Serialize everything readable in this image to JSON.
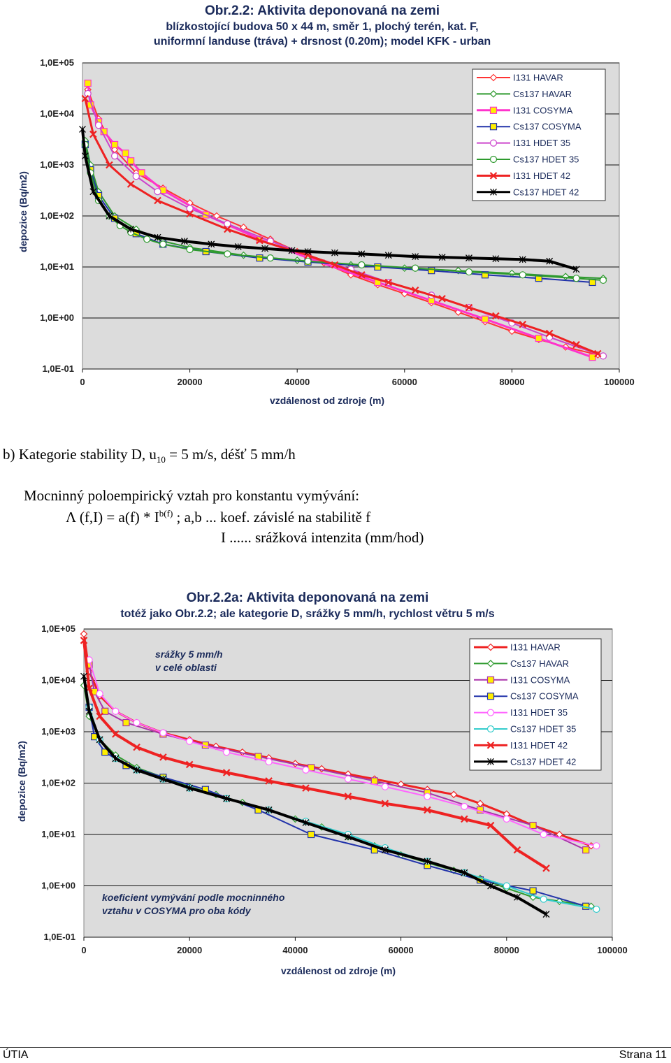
{
  "chart_data": [
    {
      "type": "line",
      "title_lines": [
        "Obr.2.2:  Aktivita deponovaná na zemi",
        "blízkostojící budova 50 x 44 m, směr 1, plochý terén, kat. F,",
        "uniformní landuse (tráva) + drsnost (0.20m); model KFK - urban"
      ],
      "xlabel": "vzdálenost od zdroje (m)",
      "ylabel": "depozice (Bq/m2)",
      "xlim": [
        0,
        100000
      ],
      "ylim": [
        0.1,
        100000
      ],
      "yscale": "log",
      "x_ticks": [
        "0",
        "20000",
        "40000",
        "60000",
        "80000",
        "100000"
      ],
      "y_ticks": [
        "1,0E-01",
        "1,0E+00",
        "1,0E+01",
        "1,0E+02",
        "1,0E+03",
        "1,0E+04",
        "1,0E+05"
      ],
      "grid": "horizontal",
      "legend_position": "top-right",
      "annotations": [],
      "series": [
        {
          "name": "I131 HAVAR",
          "color": "#ff3333",
          "marker": "diamond-open",
          "lw": 2,
          "x": [
            1000,
            3000,
            6000,
            10000,
            15000,
            20000,
            25000,
            30000,
            35000,
            40000,
            45000,
            50000,
            55000,
            60000,
            65000,
            70000,
            75000,
            80000,
            85000,
            90000,
            96000
          ],
          "y": [
            30000,
            8000,
            2000,
            700,
            350,
            180,
            100,
            60,
            35,
            20,
            12,
            7,
            4.5,
            3,
            2,
            1.3,
            0.85,
            0.55,
            0.38,
            0.27,
            0.19
          ]
        },
        {
          "name": "Cs137 HAVAR",
          "color": "#2e9a2e",
          "marker": "diamond-open",
          "lw": 2,
          "x": [
            500,
            1500,
            3000,
            6000,
            10000,
            15000,
            20000,
            30000,
            40000,
            50000,
            60000,
            70000,
            80000,
            90000,
            97000
          ],
          "y": [
            3000,
            1000,
            300,
            100,
            55,
            32,
            24,
            17,
            13.5,
            11,
            9.5,
            8.5,
            7.5,
            6.5,
            6
          ]
        },
        {
          "name": "I131 COSYMA",
          "color": "#ff33cc",
          "marker": "square-yellow",
          "lw": 3,
          "x": [
            1000,
            1500,
            3000,
            4000,
            6000,
            8000,
            9000,
            11000,
            15000,
            23000,
            33000,
            42000,
            55000,
            65000,
            75000,
            85000,
            95000
          ],
          "y": [
            40000,
            15000,
            7000,
            4500,
            2500,
            1700,
            1200,
            700,
            320,
            105,
            35,
            15,
            5,
            2.2,
            0.95,
            0.4,
            0.17
          ]
        },
        {
          "name": "Cs137 COSYMA",
          "color": "#2233aa",
          "marker": "square-yellow",
          "lw": 2,
          "x": [
            500,
            1500,
            3000,
            6000,
            10000,
            15000,
            23000,
            33000,
            42000,
            55000,
            65000,
            75000,
            85000,
            95000
          ],
          "y": [
            2500,
            800,
            250,
            90,
            45,
            28,
            20,
            15,
            12.5,
            10,
            8.5,
            7,
            6,
            5
          ]
        },
        {
          "name": "I131 HDET 35",
          "color": "#cc44cc",
          "marker": "circle-open",
          "lw": 2,
          "x": [
            1000,
            3000,
            6000,
            10000,
            14000,
            20000,
            27000,
            35000,
            42000,
            50000,
            57000,
            65000,
            72000,
            80000,
            87000,
            97000
          ],
          "y": [
            25000,
            6000,
            1500,
            600,
            300,
            140,
            70,
            32,
            17,
            9,
            5,
            2.8,
            1.6,
            0.8,
            0.42,
            0.18
          ]
        },
        {
          "name": "Cs137 HDET 35",
          "color": "#2e9a2e",
          "marker": "circle-open",
          "lw": 2,
          "x": [
            500,
            1500,
            3000,
            5000,
            7000,
            9000,
            12000,
            15000,
            20000,
            27000,
            35000,
            42000,
            52000,
            62000,
            72000,
            82000,
            92000,
            97000
          ],
          "y": [
            2500,
            700,
            200,
            100,
            65,
            48,
            35,
            28,
            22,
            18,
            15,
            13,
            11,
            9.5,
            8,
            7,
            6,
            5.5
          ]
        },
        {
          "name": "I131 HDET 42",
          "color": "#ee2222",
          "marker": "x",
          "lw": 3,
          "x": [
            500,
            2000,
            5000,
            9000,
            14000,
            20000,
            27000,
            33000,
            42000,
            47000,
            52000,
            57000,
            62000,
            67000,
            72000,
            77000,
            82000,
            87000,
            92000,
            96000
          ],
          "y": [
            20000,
            4000,
            1000,
            420,
            200,
            110,
            55,
            33,
            17,
            11,
            7,
            5,
            3.5,
            2.4,
            1.6,
            1.1,
            0.75,
            0.5,
            0.3,
            0.2
          ]
        },
        {
          "name": "Cs137 HDET 42",
          "color": "#000000",
          "marker": "asterisk",
          "lw": 4,
          "x": [
            0,
            500,
            2000,
            5000,
            9000,
            14000,
            19000,
            24000,
            29000,
            34000,
            39000,
            42000,
            47000,
            52000,
            57000,
            62000,
            67000,
            72000,
            77000,
            82000,
            87000,
            92000
          ],
          "y": [
            5000,
            1500,
            300,
            100,
            55,
            38,
            32,
            28,
            25,
            23,
            21,
            20,
            19,
            18,
            17,
            16,
            15.5,
            15,
            14.5,
            14,
            13,
            9
          ]
        }
      ]
    },
    {
      "type": "line",
      "title_lines": [
        "Obr.2.2a: Aktivita  deponovaná na zemi",
        "totéž jako Obr.2.2; ale kategorie D, srážky 5 mm/h, rychlost větru 5 m/s"
      ],
      "xlabel": "vzdálenost od zdroje (m)",
      "ylabel": "depozice (Bq/m2)",
      "xlim": [
        0,
        100000
      ],
      "ylim": [
        0.1,
        100000
      ],
      "yscale": "log",
      "x_ticks": [
        "0",
        "20000",
        "40000",
        "60000",
        "80000",
        "100000"
      ],
      "y_ticks": [
        "1,0E-01",
        "1,0E+00",
        "1,0E+01",
        "1,0E+02",
        "1,0E+03",
        "1,0E+04",
        "1,0E+05"
      ],
      "grid": "horizontal",
      "legend_position": "top-right",
      "annotations": [
        {
          "text_lines": [
            "srážky 5 mm/h",
            "v celé oblasti"
          ],
          "position": "upper-left"
        },
        {
          "text_lines": [
            "koeficient vymývání podle mocninného",
            "vztahu v COSYMA pro oba kódy"
          ],
          "position": "lower-left"
        }
      ],
      "series": [
        {
          "name": "I131 HAVAR",
          "color": "#ee2222",
          "marker": "diamond-open",
          "lw": 3,
          "x": [
            0,
            1000,
            3000,
            6000,
            10000,
            15000,
            20000,
            25000,
            30000,
            35000,
            40000,
            45000,
            50000,
            55000,
            60000,
            65000,
            70000,
            75000,
            80000,
            85000,
            90000,
            96000
          ],
          "y": [
            80000,
            15000,
            5000,
            2500,
            1500,
            950,
            700,
            520,
            400,
            310,
            240,
            190,
            150,
            120,
            95,
            75,
            60,
            40,
            25,
            15,
            10,
            6
          ]
        },
        {
          "name": "Cs137 HAVAR",
          "color": "#2e9a2e",
          "marker": "diamond-open",
          "lw": 2,
          "x": [
            0,
            1000,
            3000,
            6000,
            10000,
            15000,
            20000,
            25000,
            30000,
            35000,
            40000,
            45000,
            50000,
            55000,
            60000,
            65000,
            70000,
            75000,
            80000,
            85000,
            90000,
            96000
          ],
          "y": [
            8000,
            2000,
            700,
            350,
            200,
            130,
            85,
            60,
            42,
            30,
            20,
            14,
            9,
            6,
            4,
            2.8,
            2,
            1.4,
            0.9,
            0.6,
            0.5,
            0.4
          ]
        },
        {
          "name": "I131 COSYMA",
          "color": "#aa33aa",
          "marker": "square-yellow",
          "lw": 2,
          "x": [
            1000,
            2000,
            4000,
            8000,
            15000,
            23000,
            33000,
            43000,
            55000,
            65000,
            75000,
            85000,
            95000
          ],
          "y": [
            20000,
            6000,
            2500,
            1500,
            900,
            550,
            330,
            200,
            110,
            65,
            30,
            15,
            5
          ]
        },
        {
          "name": "Cs137 COSYMA",
          "color": "#2233aa",
          "marker": "square-yellow",
          "lw": 2,
          "x": [
            1000,
            2000,
            4000,
            8000,
            15000,
            23000,
            33000,
            43000,
            55000,
            65000,
            75000,
            85000,
            95000
          ],
          "y": [
            3000,
            800,
            400,
            220,
            130,
            75,
            30,
            10,
            5,
            2.5,
            1.3,
            0.8,
            0.4
          ]
        },
        {
          "name": "I131 HDET 35",
          "color": "#ff66ff",
          "marker": "circle-open",
          "lw": 2,
          "x": [
            1000,
            3000,
            6000,
            10000,
            15000,
            20000,
            27000,
            35000,
            42000,
            50000,
            57000,
            65000,
            72000,
            80000,
            87000,
            97000
          ],
          "y": [
            25000,
            5500,
            2500,
            1500,
            950,
            650,
            400,
            260,
            180,
            120,
            85,
            55,
            35,
            20,
            10,
            6
          ]
        },
        {
          "name": "Cs137 HDET 35",
          "color": "#33cccc",
          "marker": "circle-open",
          "lw": 2,
          "x": [
            1000,
            3000,
            6000,
            10000,
            15000,
            20000,
            27000,
            35000,
            42000,
            50000,
            57000,
            65000,
            72000,
            80000,
            87000,
            97000
          ],
          "y": [
            3000,
            700,
            300,
            180,
            120,
            80,
            50,
            30,
            18,
            10,
            5.5,
            3,
            1.8,
            1,
            0.55,
            0.35
          ]
        },
        {
          "name": "I131 HDET 42",
          "color": "#ee2222",
          "marker": "x",
          "lw": 4,
          "x": [
            0,
            1000,
            3000,
            6000,
            10000,
            15000,
            20000,
            27000,
            35000,
            42000,
            50000,
            57000,
            65000,
            72000,
            77000,
            82000,
            87500
          ],
          "y": [
            60000,
            7000,
            2000,
            900,
            500,
            320,
            230,
            160,
            110,
            80,
            55,
            40,
            30,
            20,
            15,
            5,
            2.2
          ]
        },
        {
          "name": "Cs137 HDET 42",
          "color": "#000000",
          "marker": "asterisk",
          "lw": 4,
          "x": [
            0,
            1000,
            3000,
            6000,
            10000,
            15000,
            20000,
            27000,
            35000,
            42000,
            50000,
            57000,
            65000,
            72000,
            77000,
            82000,
            87500
          ],
          "y": [
            12000,
            2500,
            700,
            300,
            180,
            120,
            80,
            50,
            30,
            17,
            9,
            5,
            3,
            1.8,
            1,
            0.6,
            0.28
          ]
        }
      ]
    }
  ],
  "text": {
    "section_heading_pre": "b)  Kategorie stability D, u",
    "section_heading_sub": "10",
    "section_heading_post": " = 5 m/s, déšť 5 mm/h",
    "formula_intro": "Mocninný poloempirický vztah pro konstantu vymývání:",
    "formula_main": "Λ (f,I) = a(f) * I",
    "formula_sup": "b(f)",
    "formula_tail": " ;   a,b ... koef. závislé na stabilitě f",
    "formula_i": "I ...... srážková intenzita (mm/hod)"
  },
  "footer": {
    "left": "ÚTIA",
    "right": "Strana 11"
  }
}
